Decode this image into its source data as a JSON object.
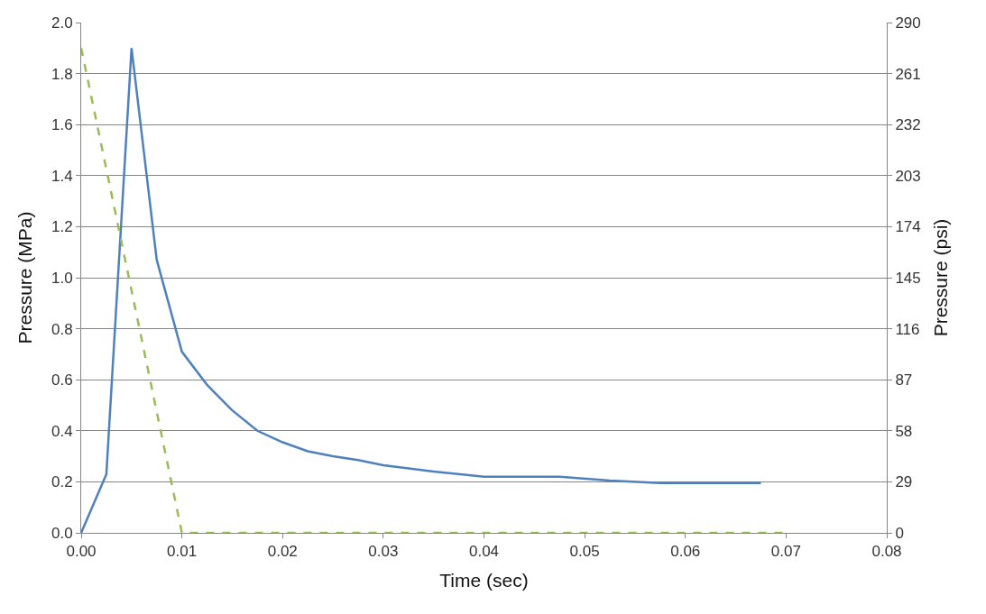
{
  "chart_data": {
    "type": "line",
    "xlabel": "Time (sec)",
    "ylabel": "Pressure (MPa)",
    "y2label": "Pressure (psi)",
    "xlim": [
      0,
      0.08
    ],
    "xticks": [
      {
        "value": 0,
        "label": "0.00"
      },
      {
        "value": 0.01,
        "label": "0.01"
      },
      {
        "value": 0.02,
        "label": "0.02"
      },
      {
        "value": 0.03,
        "label": "0.03"
      },
      {
        "value": 0.04,
        "label": "0.04"
      },
      {
        "value": 0.05,
        "label": "0.05"
      },
      {
        "value": 0.06,
        "label": "0.06"
      },
      {
        "value": 0.07,
        "label": "0.07"
      },
      {
        "value": 0.08,
        "label": "0.08"
      }
    ],
    "ylim": [
      0,
      2.0
    ],
    "yticks": [
      {
        "value": 0,
        "label": "0.0"
      },
      {
        "value": 0.2,
        "label": "0.2"
      },
      {
        "value": 0.4,
        "label": "0.4"
      },
      {
        "value": 0.6,
        "label": "0.6"
      },
      {
        "value": 0.8,
        "label": "0.8"
      },
      {
        "value": 1.0,
        "label": "1.0"
      },
      {
        "value": 1.2,
        "label": "1.2"
      },
      {
        "value": 1.4,
        "label": "1.4"
      },
      {
        "value": 1.6,
        "label": "1.6"
      },
      {
        "value": 1.8,
        "label": "1.8"
      },
      {
        "value": 2.0,
        "label": "2.0"
      }
    ],
    "y2lim": [
      0,
      290
    ],
    "y2ticks": [
      0,
      29,
      58,
      87,
      116,
      145,
      174,
      203,
      232,
      261,
      290
    ],
    "grid": "y",
    "marker": "none",
    "series": [
      {
        "color": "#4f81bd",
        "line_style": "solid",
        "x": [
          0,
          0.0025,
          0.005,
          0.0075,
          0.01,
          0.0125,
          0.015,
          0.0175,
          0.02,
          0.0225,
          0.025,
          0.0275,
          0.03,
          0.035,
          0.04,
          0.0475,
          0.0525,
          0.0575,
          0.0675
        ],
        "values": [
          0,
          0.23,
          1.9,
          1.07,
          0.71,
          0.58,
          0.48,
          0.4,
          0.355,
          0.32,
          0.3,
          0.285,
          0.265,
          0.24,
          0.22,
          0.22,
          0.205,
          0.195,
          0.195
        ]
      },
      {
        "color": "#9bbb59",
        "line_style": "dashed",
        "x": [
          0,
          0.01,
          0.07
        ],
        "values": [
          1.9,
          0,
          0
        ]
      }
    ]
  }
}
